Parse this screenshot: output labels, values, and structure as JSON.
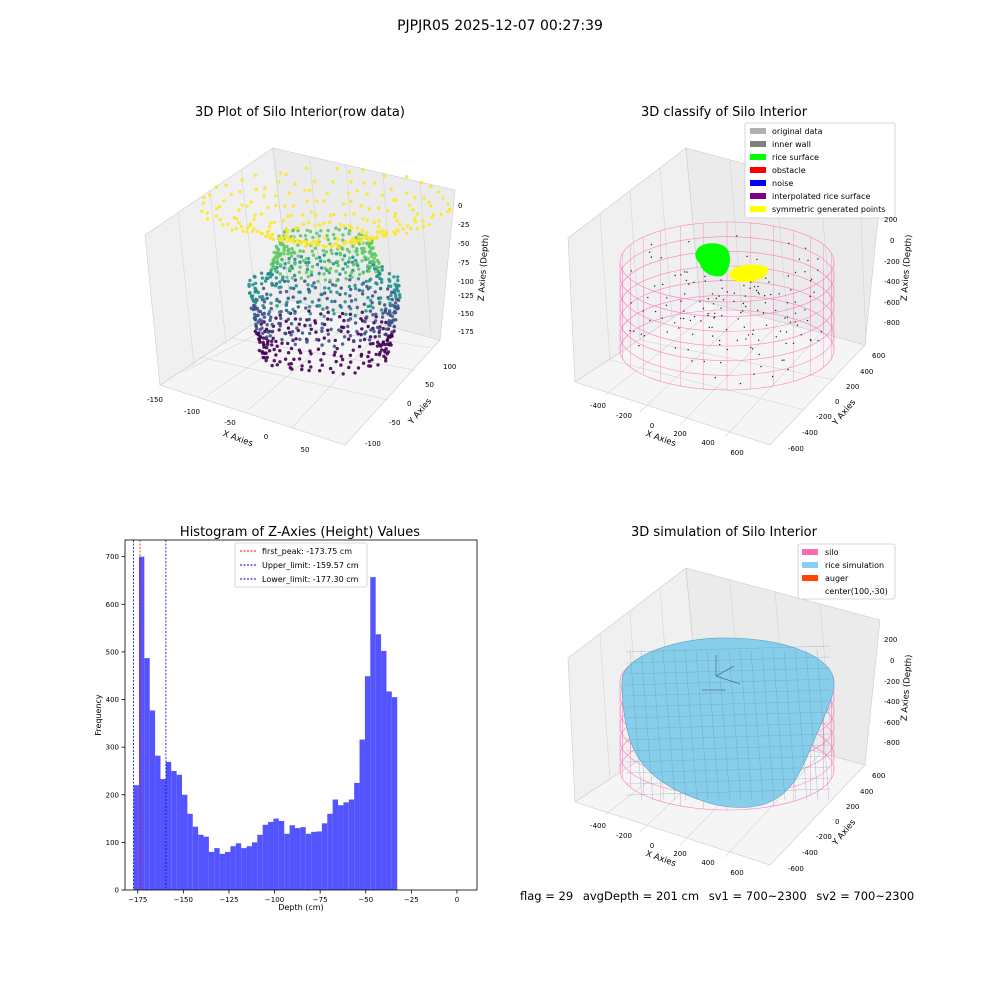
{
  "page": {
    "title": "PJPJR05 2025-12-07 00:27:39"
  },
  "colors": {
    "viridis": [
      "#440154",
      "#3b528b",
      "#21918c",
      "#5ec962",
      "#fde725"
    ],
    "pane_gray": "#f2f2f2",
    "grid": "#d0d0d0",
    "histogram_bar": "#4b4bff",
    "silo_pink": "#ff69b4",
    "rice_sim": "#87cefa",
    "auger": "#ff4500",
    "rice_surface_green": "#00ff00",
    "symmetric_yellow": "#ffff00"
  },
  "panel_raw": {
    "title": "3D Plot of Silo Interior(row data)",
    "xlabel": "X Axies",
    "ylabel": "Y Axies",
    "zlabel": "Z Axies (Depth)",
    "x_ticks": [
      "-150",
      "-100",
      "-50",
      "0",
      "50"
    ],
    "y_ticks": [
      "100",
      "50",
      "0",
      "-50",
      "-100"
    ],
    "z_ticks": [
      "0",
      "-25",
      "-50",
      "-75",
      "-100",
      "-125",
      "-150",
      "-175"
    ]
  },
  "panel_classify": {
    "title": "3D classify of Silo Interior",
    "xlabel": "X Axies",
    "ylabel": "Y Axies",
    "zlabel": "Z Axies (Depth)",
    "x_ticks": [
      "-400",
      "-200",
      "0",
      "200",
      "400",
      "600"
    ],
    "y_ticks": [
      "600",
      "400",
      "200",
      "0",
      "-200",
      "-400",
      "-600"
    ],
    "z_ticks": [
      "200",
      "0",
      "-200",
      "-400",
      "-600",
      "-800"
    ],
    "legend": [
      {
        "label": "original data",
        "color": "#b0b0b0"
      },
      {
        "label": "inner wall",
        "color": "#808080"
      },
      {
        "label": "rice surface",
        "color": "#00ff00"
      },
      {
        "label": "obstacle",
        "color": "#ff0000"
      },
      {
        "label": "noise",
        "color": "#0000ff"
      },
      {
        "label": "interpolated rice surface",
        "color": "#800080"
      },
      {
        "label": "symmetric generated points",
        "color": "#ffff00"
      }
    ]
  },
  "panel_sim": {
    "title": "3D simulation of Silo Interior",
    "xlabel": "X Axies",
    "ylabel": "Y Axies",
    "zlabel": "Z Axies (Depth)",
    "x_ticks": [
      "-400",
      "-200",
      "0",
      "200",
      "400",
      "600"
    ],
    "y_ticks": [
      "600",
      "400",
      "200",
      "0",
      "-200",
      "-400",
      "-600"
    ],
    "z_ticks": [
      "200",
      "0",
      "-200",
      "-400",
      "-600",
      "-800"
    ],
    "legend": [
      {
        "label": "silo",
        "color": "#ff69b4"
      },
      {
        "label": "rice simulation",
        "color": "#87cefa"
      },
      {
        "label": "auger",
        "color": "#ff4500"
      },
      {
        "label": "center(100,-30)",
        "color": ""
      }
    ]
  },
  "footer": {
    "flag": "flag = 29",
    "avg_depth": "avgDepth = 201 cm",
    "sv1": "sv1 = 700~2300",
    "sv2": "sv2 = 700~2300"
  },
  "chart_data": {
    "type": "bar",
    "title": "Histogram of Z-Axies (Height) Values",
    "xlabel": "Depth (cm)",
    "ylabel": "Frequency",
    "xlim": [
      -182,
      11
    ],
    "ylim": [
      0,
      735
    ],
    "x_ticks": [
      -175,
      -150,
      -125,
      -100,
      -75,
      -50,
      -25,
      0
    ],
    "y_ticks": [
      0,
      100,
      200,
      300,
      400,
      500,
      600,
      700
    ],
    "bin_start": -177.3,
    "bin_width": 2.95,
    "values": [
      220,
      700,
      487,
      377,
      282,
      233,
      269,
      250,
      242,
      200,
      160,
      133,
      116,
      112,
      80,
      88,
      76,
      80,
      92,
      98,
      88,
      92,
      100,
      116,
      137,
      143,
      150,
      145,
      118,
      136,
      130,
      132,
      118,
      122,
      123,
      140,
      160,
      190,
      178,
      184,
      190,
      225,
      316,
      449,
      657,
      537,
      502,
      417,
      405
    ],
    "vlines": [
      {
        "label": "first_peak: -173.75 cm",
        "x": -173.75,
        "color": "#ff0000"
      },
      {
        "label": "Upper_limit: -159.57 cm",
        "x": -159.57,
        "color": "#0000cc"
      },
      {
        "label": "Lower_limit: -177.30 cm",
        "x": -177.3,
        "color": "#0000cc"
      }
    ]
  }
}
